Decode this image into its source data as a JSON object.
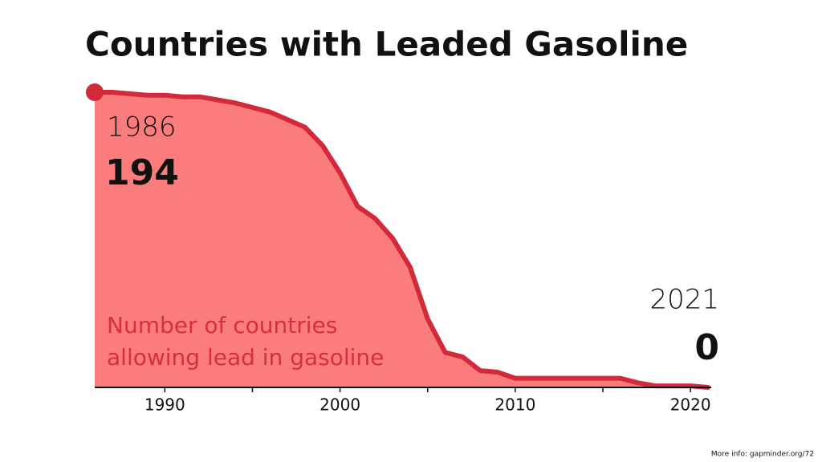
{
  "chart_data": {
    "type": "area",
    "title": "Countries with Leaded Gasoline",
    "x": [
      1986,
      1987,
      1988,
      1989,
      1990,
      1991,
      1992,
      1993,
      1994,
      1995,
      1996,
      1997,
      1998,
      1999,
      2000,
      2001,
      2002,
      2003,
      2004,
      2005,
      2006,
      2007,
      2008,
      2009,
      2010,
      2011,
      2012,
      2013,
      2014,
      2015,
      2016,
      2017,
      2018,
      2019,
      2020,
      2021
    ],
    "values": [
      194,
      194,
      193,
      192,
      192,
      191,
      191,
      189,
      187,
      184,
      181,
      176,
      171,
      159,
      141,
      119,
      111,
      98,
      79,
      45,
      23,
      20,
      11,
      10,
      6,
      6,
      6,
      6,
      6,
      6,
      6,
      3,
      1,
      1,
      1,
      0
    ],
    "color": "#fb7c7c",
    "line_color": "#d22a3a",
    "xlim": [
      1986,
      2021
    ],
    "ylim": [
      0,
      194
    ],
    "xticks": [
      1990,
      2000,
      2010,
      2020
    ],
    "minor_xticks": [
      1995,
      2005,
      2015
    ],
    "annotation": [
      "Number of countries",
      "allowing lead in gasoline"
    ],
    "annotation_color": "#d5303e"
  },
  "footer": "More info: gapminder.org/72"
}
